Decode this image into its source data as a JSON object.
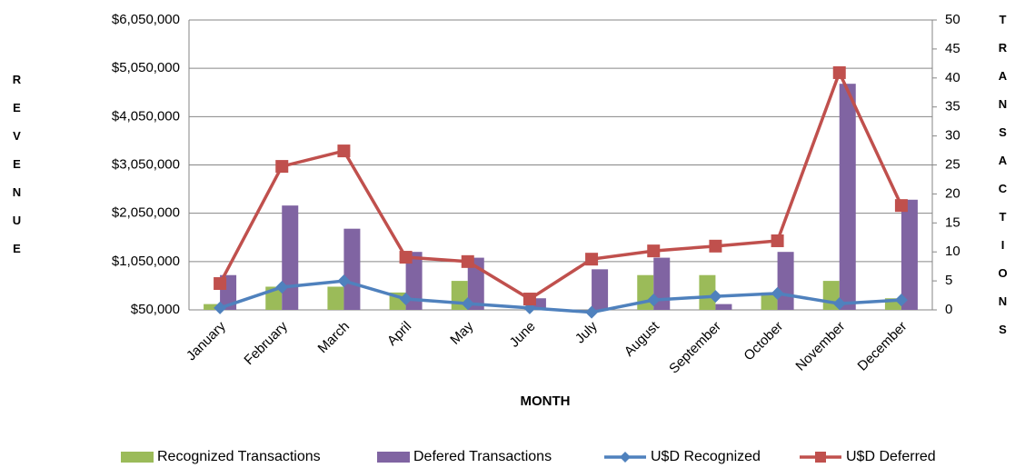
{
  "chart_data": {
    "type": "bar-line",
    "x_label": "MONTH",
    "y_label": "REVENUE",
    "y2_label": "TRANSACTIONS",
    "categories": [
      "January",
      "February",
      "March",
      "April",
      "May",
      "June",
      "July",
      "August",
      "September",
      "October",
      "November",
      "December"
    ],
    "series": [
      {
        "name": "Recognized Transactions",
        "type": "bar",
        "axis": "y2",
        "color": "#9bbb59",
        "values": [
          1,
          4,
          4,
          3,
          5,
          0,
          0,
          6,
          6,
          3,
          5,
          2
        ]
      },
      {
        "name": "Defered Transactions",
        "type": "bar",
        "axis": "y2",
        "color": "#8064a2",
        "values": [
          6,
          18,
          14,
          10,
          9,
          2,
          7,
          9,
          1,
          10,
          39,
          19
        ]
      },
      {
        "name": "U$D Recognized",
        "type": "line",
        "marker": "diamond",
        "color": "#4f81bd",
        "values": [
          90000,
          520000,
          650000,
          275000,
          180000,
          90000,
          0,
          255000,
          330000,
          390000,
          180000,
          255000
        ]
      },
      {
        "name": "U$D Deferred",
        "type": "line",
        "marker": "square",
        "color": "#c0504d",
        "values": [
          595000,
          3020000,
          3340000,
          1140000,
          1050000,
          275000,
          1100000,
          1270000,
          1370000,
          1480000,
          4960000,
          2210000
        ]
      }
    ],
    "ylim": [
      50000,
      6050000
    ],
    "yticks": [
      {
        "value": 50000,
        "label": "$50,000"
      },
      {
        "value": 1050000,
        "label": "$1,050,000"
      },
      {
        "value": 2050000,
        "label": "$2,050,000"
      },
      {
        "value": 3050000,
        "label": "$3,050,000"
      },
      {
        "value": 4050000,
        "label": "$4,050,000"
      },
      {
        "value": 5050000,
        "label": "$5,050,000"
      },
      {
        "value": 6050000,
        "label": "$6,050,000"
      }
    ],
    "y2lim": [
      0,
      50
    ],
    "y2ticks": [
      0,
      5,
      10,
      15,
      20,
      25,
      30,
      35,
      40,
      45,
      50
    ],
    "grid": true,
    "legend": "bottom"
  }
}
